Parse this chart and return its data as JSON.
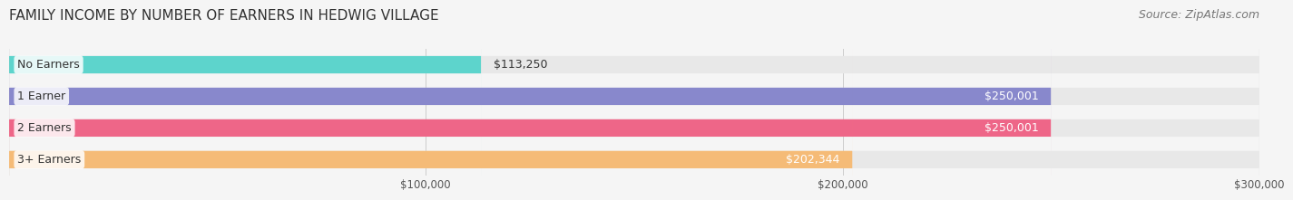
{
  "title": "FAMILY INCOME BY NUMBER OF EARNERS IN HEDWIG VILLAGE",
  "source": "Source: ZipAtlas.com",
  "categories": [
    "No Earners",
    "1 Earner",
    "2 Earners",
    "3+ Earners"
  ],
  "values": [
    113250,
    250001,
    250001,
    202344
  ],
  "labels": [
    "$113,250",
    "$250,001",
    "$250,001",
    "$202,344"
  ],
  "bar_colors": [
    "#5dd4cc",
    "#8888cc",
    "#ee6688",
    "#f5bb77"
  ],
  "bar_bg_color": "#e8e8e8",
  "label_colors": [
    "#333333",
    "#ffffff",
    "#ffffff",
    "#333333"
  ],
  "xlim": [
    0,
    300000
  ],
  "xticks": [
    100000,
    200000,
    300000
  ],
  "xtick_labels": [
    "$100,000",
    "$200,000",
    "$300,000"
  ],
  "bg_color": "#f5f5f5",
  "bar_height": 0.55,
  "title_fontsize": 11,
  "source_fontsize": 9,
  "label_fontsize": 9,
  "category_fontsize": 9
}
